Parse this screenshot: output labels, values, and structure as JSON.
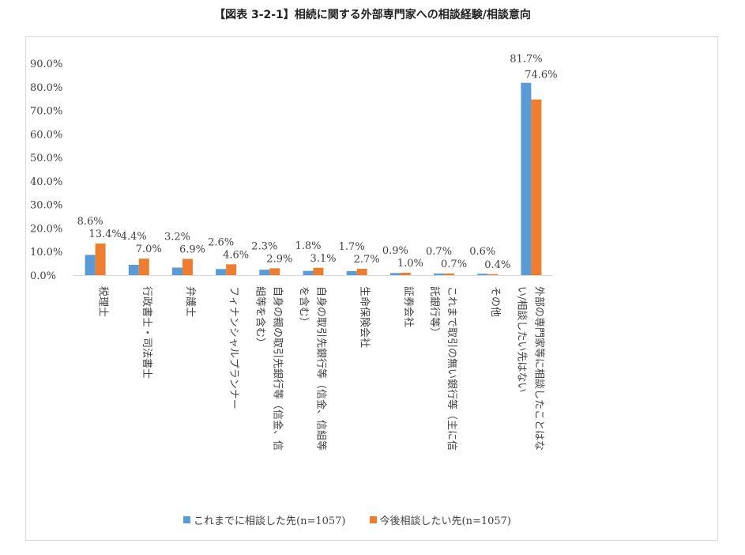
{
  "page_title": "【図表 3-2-1】相続に関する外部専門家への相談経験/相談意向",
  "colors": {
    "series1": "#5b9bd5",
    "series2": "#ed7d31",
    "grid": "#d9d9d9"
  },
  "chart_data": {
    "type": "bar",
    "title": "【図表 3-2-1】相続に関する外部専門家への相談経験/相談意向",
    "ylim": [
      0,
      90
    ],
    "yticks": [
      "0.0%",
      "10.0%",
      "20.0%",
      "30.0%",
      "40.0%",
      "50.0%",
      "60.0%",
      "70.0%",
      "80.0%",
      "90.0%"
    ],
    "grid": false,
    "legend_position": "bottom",
    "categories": [
      "税理士",
      "行政書士・司法書士",
      "弁護士",
      "フィナンシャルプランナー",
      "自身の親の取引先銀行等（信金、信組等を含む）",
      "自身の取引先銀行等（信金、信組等を含む）",
      "生命保険会社",
      "証券会社",
      "これまで取引の無い銀行等（主に信託銀行等）",
      "その他",
      "外部の専門家等に相談したことはない/相談したい先はない"
    ],
    "category_lines": [
      [
        "税理士"
      ],
      [
        "行政書士・司法書士"
      ],
      [
        "弁護士"
      ],
      [
        "フィナンシャルプランナー"
      ],
      [
        "自身の親の取引先銀行等（信金、信",
        "組等を含む）"
      ],
      [
        "自身の取引先銀行等（信金、信組等",
        "を含む）"
      ],
      [
        "生命保険会社"
      ],
      [
        "証券会社"
      ],
      [
        "これまで取引の無い銀行等（主に信",
        "託銀行等）"
      ],
      [
        "その他"
      ],
      [
        "外部の専門家等に相談したことはな",
        "い/相談したい先はない"
      ]
    ],
    "series": [
      {
        "name": "これまでに相談した先(n=1057)",
        "values": [
          8.6,
          4.4,
          3.2,
          2.6,
          2.3,
          1.8,
          1.7,
          0.9,
          0.7,
          0.6,
          81.7
        ],
        "labels": [
          "8.6%",
          "4.4%",
          "3.2%",
          "2.6%",
          "2.3%",
          "1.8%",
          "1.7%",
          "0.9%",
          "0.7%",
          "0.6%",
          "81.7%"
        ]
      },
      {
        "name": "今後相談したい先(n=1057)",
        "values": [
          13.4,
          7.0,
          6.9,
          4.6,
          2.9,
          3.1,
          2.7,
          1.0,
          0.7,
          0.4,
          74.6
        ],
        "labels": [
          "13.4%",
          "7.0%",
          "6.9%",
          "4.6%",
          "2.9%",
          "3.1%",
          "2.7%",
          "1.0%",
          "0.7%",
          "0.4%",
          "74.6%"
        ]
      }
    ]
  }
}
